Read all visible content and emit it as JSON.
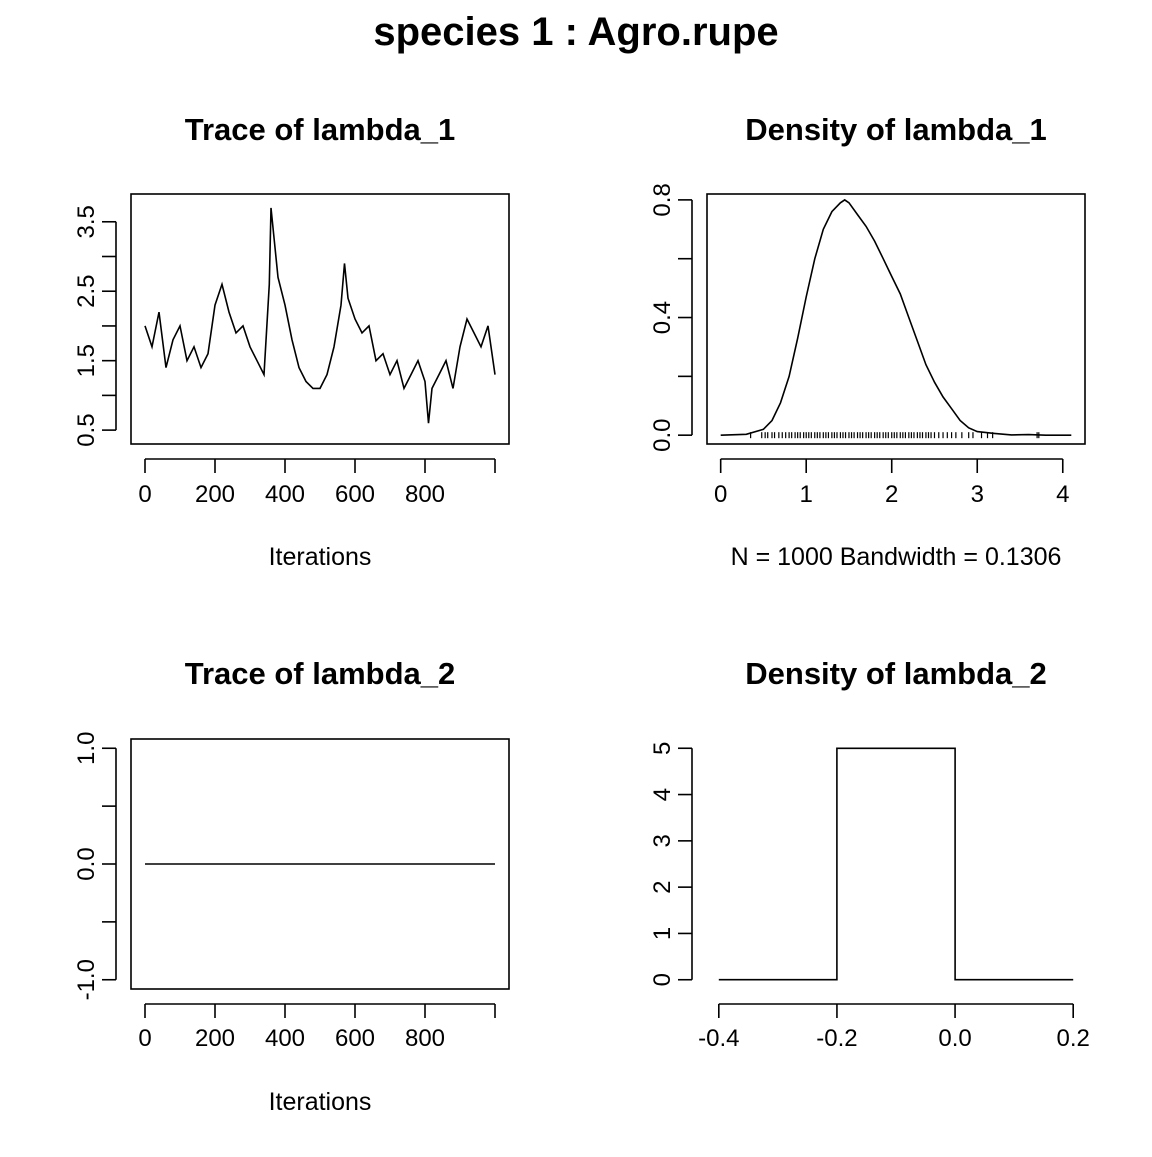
{
  "figure": {
    "title": "species 1 : Agro.rupe"
  },
  "chart_data": [
    {
      "type": "line",
      "title": "Trace of lambda_1",
      "xlabel": "Iterations",
      "ylabel": "",
      "xlim": [
        -40,
        1040
      ],
      "ylim": [
        0.3,
        3.9
      ],
      "x_ticks": [
        0,
        200,
        400,
        600,
        800
      ],
      "x_tick_labels": [
        "0",
        "200",
        "400",
        "600",
        "800"
      ],
      "x_tick_marks": [
        0,
        200,
        400,
        600,
        800,
        1000
      ],
      "y_ticks": [
        0.5,
        1,
        1.5,
        2,
        2.5,
        3,
        3.5
      ],
      "y_tick_labels": [
        "0.5",
        "",
        "1.5",
        "",
        "2.5",
        "",
        "3.5"
      ],
      "series": [
        {
          "x": [
            0,
            20,
            40,
            60,
            80,
            100,
            120,
            140,
            160,
            180,
            200,
            220,
            240,
            260,
            280,
            300,
            320,
            340,
            355,
            360,
            380,
            400,
            420,
            440,
            460,
            480,
            500,
            520,
            540,
            560,
            570,
            580,
            600,
            620,
            640,
            660,
            680,
            700,
            720,
            740,
            760,
            780,
            800,
            810,
            820,
            840,
            860,
            880,
            900,
            920,
            940,
            960,
            980,
            1000
          ],
          "values": [
            2.0,
            1.7,
            2.2,
            1.4,
            1.8,
            2.0,
            1.5,
            1.7,
            1.4,
            1.6,
            2.3,
            2.6,
            2.2,
            1.9,
            2.0,
            1.7,
            1.5,
            1.3,
            2.6,
            3.7,
            2.7,
            2.3,
            1.8,
            1.4,
            1.2,
            1.1,
            1.1,
            1.3,
            1.7,
            2.3,
            2.9,
            2.4,
            2.1,
            1.9,
            2.0,
            1.5,
            1.6,
            1.3,
            1.5,
            1.1,
            1.3,
            1.5,
            1.2,
            0.6,
            1.1,
            1.3,
            1.5,
            1.1,
            1.7,
            2.1,
            1.9,
            1.7,
            2.0,
            1.3
          ]
        }
      ]
    },
    {
      "type": "line",
      "title": "Density of lambda_1",
      "xlabel": "N = 1000   Bandwidth = 0.1306",
      "ylabel": "",
      "xlim": [
        -0.16,
        4.26
      ],
      "ylim": [
        -0.03,
        0.82
      ],
      "x_ticks": [
        0,
        1,
        2,
        3,
        4
      ],
      "x_tick_labels": [
        "0",
        "1",
        "2",
        "3",
        "4"
      ],
      "y_ticks": [
        0,
        0.2,
        0.4,
        0.6,
        0.8
      ],
      "y_tick_labels": [
        "0.0",
        "",
        "0.4",
        "",
        "0.8"
      ],
      "series": [
        {
          "x": [
            0.0,
            0.3,
            0.5,
            0.6,
            0.7,
            0.8,
            0.9,
            1.0,
            1.1,
            1.2,
            1.3,
            1.4,
            1.45,
            1.5,
            1.6,
            1.7,
            1.8,
            1.9,
            2.0,
            2.1,
            2.2,
            2.3,
            2.4,
            2.5,
            2.6,
            2.7,
            2.8,
            2.9,
            3.0,
            3.2,
            3.4,
            3.6,
            3.8,
            4.1
          ],
          "values": [
            0.0,
            0.003,
            0.02,
            0.05,
            0.11,
            0.2,
            0.33,
            0.47,
            0.6,
            0.7,
            0.76,
            0.79,
            0.8,
            0.79,
            0.75,
            0.71,
            0.66,
            0.6,
            0.54,
            0.48,
            0.4,
            0.32,
            0.24,
            0.18,
            0.13,
            0.09,
            0.05,
            0.025,
            0.012,
            0.006,
            0.001,
            0.002,
            0.0,
            0.0
          ]
        }
      ],
      "rug": [
        0.35,
        0.48,
        0.52,
        0.55,
        0.6,
        0.63,
        0.68,
        0.72,
        0.76,
        0.8,
        0.83,
        0.87,
        0.9,
        0.93,
        0.97,
        1.0,
        1.03,
        1.06,
        1.1,
        1.13,
        1.16,
        1.2,
        1.23,
        1.26,
        1.3,
        1.33,
        1.36,
        1.4,
        1.43,
        1.46,
        1.5,
        1.53,
        1.56,
        1.6,
        1.63,
        1.66,
        1.7,
        1.73,
        1.76,
        1.8,
        1.83,
        1.86,
        1.9,
        1.93,
        1.96,
        2.0,
        2.03,
        2.06,
        2.1,
        2.13,
        2.16,
        2.2,
        2.23,
        2.26,
        2.3,
        2.33,
        2.36,
        2.4,
        2.43,
        2.46,
        2.5,
        2.55,
        2.6,
        2.65,
        2.7,
        2.75,
        2.82,
        2.9,
        2.95,
        3.05,
        3.12,
        3.18,
        3.7,
        3.72
      ]
    },
    {
      "type": "line",
      "title": "Trace of lambda_2",
      "xlabel": "Iterations",
      "ylabel": "",
      "xlim": [
        -40,
        1040
      ],
      "ylim": [
        -1.08,
        1.08
      ],
      "x_ticks": [
        0,
        200,
        400,
        600,
        800
      ],
      "x_tick_labels": [
        "0",
        "200",
        "400",
        "600",
        "800"
      ],
      "x_tick_marks": [
        0,
        200,
        400,
        600,
        800,
        1000
      ],
      "y_ticks": [
        -1,
        -0.5,
        0,
        0.5,
        1
      ],
      "y_tick_labels": [
        "-1.0",
        "",
        "0.0",
        "",
        "1.0"
      ],
      "series": [
        {
          "x": [
            0,
            1000
          ],
          "values": [
            0,
            0
          ]
        }
      ]
    },
    {
      "type": "line",
      "title": "Density of lambda_2",
      "xlabel": "",
      "ylabel": "",
      "xlim": [
        -0.42,
        0.22
      ],
      "ylim": [
        -0.2,
        5.2
      ],
      "x_ticks": [
        -0.4,
        -0.2,
        0,
        0.2
      ],
      "x_tick_labels": [
        "-0.4",
        "-0.2",
        "0.0",
        "0.2"
      ],
      "y_ticks": [
        0,
        1,
        2,
        3,
        4,
        5
      ],
      "y_tick_labels": [
        "0",
        "1",
        "2",
        "3",
        "4",
        "5"
      ],
      "box": false,
      "series": [
        {
          "x": [
            -0.4,
            -0.2,
            -0.2,
            0,
            0,
            0.2
          ],
          "values": [
            0,
            0,
            5,
            5,
            0,
            0
          ]
        }
      ]
    }
  ]
}
